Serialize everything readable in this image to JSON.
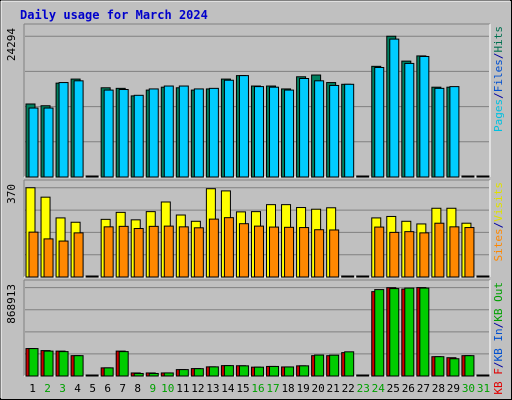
{
  "chart_data": {
    "type": "bar",
    "title": "Daily usage for March 2024",
    "categories": [
      "1",
      "2",
      "3",
      "4",
      "5",
      "6",
      "7",
      "8",
      "9",
      "10",
      "11",
      "12",
      "13",
      "14",
      "15",
      "16",
      "17",
      "18",
      "19",
      "20",
      "21",
      "22",
      "23",
      "24",
      "25",
      "26",
      "27",
      "28",
      "29",
      "30",
      "31"
    ],
    "weekend_days": [
      "2",
      "3",
      "9",
      "10",
      "16",
      "17",
      "23",
      "24",
      "30",
      "31"
    ],
    "panels": [
      {
        "id": "hits-files-pages",
        "max_label": "24294",
        "ylim": [
          0,
          24294
        ],
        "right_axis_labels": [
          {
            "text": "Pages",
            "color": "#00c0e0"
          },
          {
            "text": "/",
            "color": "#0000a0"
          },
          {
            "text": "Files",
            "color": "#0050d0"
          },
          {
            "text": "/",
            "color": "#0000a0"
          },
          {
            "text": "Hits",
            "color": "#007050"
          }
        ],
        "series": [
          {
            "name": "Hits",
            "color": "#008060",
            "values": [
              12600,
              12300,
              16200,
              16900,
              0,
              15400,
              15300,
              14000,
              15000,
              15500,
              15400,
              15000,
              15200,
              16900,
              17500,
              15700,
              15700,
              15200,
              17300,
              17600,
              16300,
              16000,
              0,
              19100,
              24294,
              20000,
              20900,
              15500,
              15500,
              0,
              0
            ]
          },
          {
            "name": "Files",
            "color": "#00ccff",
            "values": [
              11900,
              11900,
              16300,
              16600,
              0,
              15000,
              15100,
              14100,
              15200,
              15700,
              15700,
              15200,
              15300,
              16700,
              17500,
              15600,
              15500,
              15000,
              17000,
              16600,
              15800,
              16000,
              0,
              18900,
              23800,
              19600,
              20800,
              15300,
              15600,
              0,
              0
            ]
          }
        ]
      },
      {
        "id": "visits-sites",
        "max_label": "370",
        "ylim": [
          0,
          370
        ],
        "right_axis_labels": [
          {
            "text": "Sites",
            "color": "#ff8800"
          },
          {
            "text": "/",
            "color": "#0000a0"
          },
          {
            "text": "Visits",
            "color": "#e0e000"
          }
        ],
        "series": [
          {
            "name": "Visits",
            "color": "#ffff00",
            "values": [
              370,
              331,
              245,
              227,
              0,
              239,
              268,
              237,
              271,
              311,
              257,
              231,
              366,
              357,
              270,
              271,
              300,
              300,
              288,
              281,
              287,
              0,
              0,
              245,
              251,
              231,
              220,
              285,
              285,
              223,
              0
            ]
          },
          {
            "name": "Sites",
            "color": "#ff8800",
            "values": [
              186,
              158,
              149,
              183,
              0,
              208,
              210,
              201,
              210,
              211,
              208,
              204,
              240,
              246,
              221,
              211,
              207,
              206,
              205,
              196,
              195,
              0,
              0,
              207,
              185,
              188,
              183,
              223,
              208,
              205,
              0
            ]
          }
        ]
      },
      {
        "id": "kbytes",
        "max_label": "868913",
        "ylim": [
          0,
          868913
        ],
        "right_axis_labels": [
          {
            "text": "KB F",
            "color": "#e00000"
          },
          {
            "text": "/",
            "color": "#0000a0"
          },
          {
            "text": "KB In",
            "color": "#0050d0"
          },
          {
            "text": "/",
            "color": "#0000a0"
          },
          {
            "text": "KB Out",
            "color": "#00a000"
          }
        ],
        "series": [
          {
            "name": "KB F",
            "color": "#cc0000",
            "values": [
              270000,
              250000,
              245000,
              200000,
              0,
              80000,
              245000,
              30000,
              30000,
              30000,
              63000,
              73000,
              90000,
              102000,
              101000,
              87000,
              94000,
              89000,
              100000,
              200000,
              200000,
              230000,
              0,
              830000,
              868913,
              855000,
              870000,
              190000,
              180000,
              200000,
              0
            ]
          },
          {
            "name": "KB Out",
            "color": "#00cc00",
            "values": [
              270000,
              245000,
              240000,
              200000,
              0,
              80000,
              240000,
              25000,
              25000,
              30000,
              63000,
              72000,
              90000,
              102000,
              100000,
              87000,
              94000,
              89000,
              100000,
              206000,
              205000,
              238000,
              0,
              850000,
              860000,
              865000,
              865000,
              190000,
              170000,
              200000,
              0
            ]
          }
        ]
      }
    ]
  }
}
